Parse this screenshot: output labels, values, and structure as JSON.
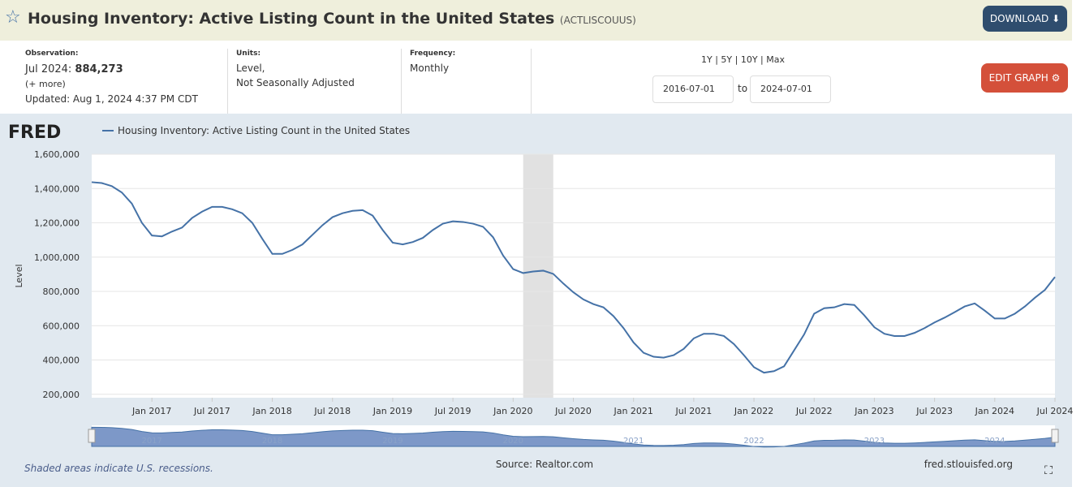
{
  "header": {
    "title": "Housing Inventory: Active Listing Count in the United States",
    "series_id": "(ACTLISCOUUS)",
    "download": "DOWNLOAD"
  },
  "meta": {
    "observation_label": "Observation:",
    "observation_date": "Jul 2024:",
    "observation_value": "884,273",
    "more": "(+ more)",
    "updated": "Updated: Aug 1, 2024 4:37 PM CDT",
    "units_label": "Units:",
    "units_1": "Level,",
    "units_2": "Not Seasonally Adjusted",
    "frequency_label": "Frequency:",
    "frequency": "Monthly",
    "ranges": "1Y | 5Y | 10Y | Max",
    "start_date": "2016-07-01",
    "to": "to",
    "end_date": "2024-07-01",
    "edit_graph": "EDIT GRAPH"
  },
  "chart_data": {
    "type": "line",
    "logo": "FRED",
    "ylabel": "Level",
    "x": [
      "2016-07",
      "2016-08",
      "2016-09",
      "2016-10",
      "2016-11",
      "2016-12",
      "2017-01",
      "2017-02",
      "2017-03",
      "2017-04",
      "2017-05",
      "2017-06",
      "2017-07",
      "2017-08",
      "2017-09",
      "2017-10",
      "2017-11",
      "2017-12",
      "2018-01",
      "2018-02",
      "2018-03",
      "2018-04",
      "2018-05",
      "2018-06",
      "2018-07",
      "2018-08",
      "2018-09",
      "2018-10",
      "2018-11",
      "2018-12",
      "2019-01",
      "2019-02",
      "2019-03",
      "2019-04",
      "2019-05",
      "2019-06",
      "2019-07",
      "2019-08",
      "2019-09",
      "2019-10",
      "2019-11",
      "2019-12",
      "2020-01",
      "2020-02",
      "2020-03",
      "2020-04",
      "2020-05",
      "2020-06",
      "2020-07",
      "2020-08",
      "2020-09",
      "2020-10",
      "2020-11",
      "2020-12",
      "2021-01",
      "2021-02",
      "2021-03",
      "2021-04",
      "2021-05",
      "2021-06",
      "2021-07",
      "2021-08",
      "2021-09",
      "2021-10",
      "2021-11",
      "2021-12",
      "2022-01",
      "2022-02",
      "2022-03",
      "2022-04",
      "2022-05",
      "2022-06",
      "2022-07",
      "2022-08",
      "2022-09",
      "2022-10",
      "2022-11",
      "2022-12",
      "2023-01",
      "2023-02",
      "2023-03",
      "2023-04",
      "2023-05",
      "2023-06",
      "2023-07",
      "2023-08",
      "2023-09",
      "2023-10",
      "2023-11",
      "2023-12",
      "2024-01",
      "2024-02",
      "2024-03",
      "2024-04",
      "2024-05",
      "2024-06",
      "2024-07"
    ],
    "series": [
      {
        "name": "Housing Inventory: Active Listing Count in the United States",
        "color": "#4572a7",
        "values": [
          1437000,
          1432000,
          1414000,
          1377000,
          1312000,
          1200000,
          1126000,
          1121000,
          1149000,
          1172000,
          1228000,
          1265000,
          1293000,
          1293000,
          1279000,
          1256000,
          1200000,
          1107000,
          1019000,
          1019000,
          1042000,
          1074000,
          1130000,
          1186000,
          1233000,
          1256000,
          1270000,
          1274000,
          1242000,
          1158000,
          1084000,
          1074000,
          1088000,
          1112000,
          1158000,
          1195000,
          1209000,
          1205000,
          1195000,
          1177000,
          1116000,
          1009000,
          930000,
          907000,
          916000,
          921000,
          902000,
          846000,
          795000,
          753000,
          726000,
          707000,
          656000,
          586000,
          502000,
          442000,
          419000,
          414000,
          428000,
          465000,
          526000,
          553000,
          553000,
          540000,
          493000,
          428000,
          358000,
          326000,
          335000,
          363000,
          456000,
          549000,
          670000,
          702000,
          707000,
          726000,
          721000,
          660000,
          591000,
          553000,
          540000,
          540000,
          558000,
          586000,
          619000,
          647000,
          679000,
          712000,
          730000,
          688000,
          642000,
          642000,
          670000,
          712000,
          763000,
          809000,
          884273
        ]
      }
    ],
    "xlim": [
      "2016-07",
      "2024-07"
    ],
    "xticks": [
      {
        "value": "2017-01",
        "label": "Jan 2017"
      },
      {
        "value": "2017-07",
        "label": "Jul 2017"
      },
      {
        "value": "2018-01",
        "label": "Jan 2018"
      },
      {
        "value": "2018-07",
        "label": "Jul 2018"
      },
      {
        "value": "2019-01",
        "label": "Jan 2019"
      },
      {
        "value": "2019-07",
        "label": "Jul 2019"
      },
      {
        "value": "2020-01",
        "label": "Jan 2020"
      },
      {
        "value": "2020-07",
        "label": "Jul 2020"
      },
      {
        "value": "2021-01",
        "label": "Jan 2021"
      },
      {
        "value": "2021-07",
        "label": "Jul 2021"
      },
      {
        "value": "2022-01",
        "label": "Jan 2022"
      },
      {
        "value": "2022-07",
        "label": "Jul 2022"
      },
      {
        "value": "2023-01",
        "label": "Jan 2023"
      },
      {
        "value": "2023-07",
        "label": "Jul 2023"
      },
      {
        "value": "2024-01",
        "label": "Jan 2024"
      },
      {
        "value": "2024-07",
        "label": "Jul 2024"
      }
    ],
    "ylim": [
      180000,
      1600000
    ],
    "yticks": [
      {
        "value": 200000,
        "label": "200,000"
      },
      {
        "value": 400000,
        "label": "400,000"
      },
      {
        "value": 600000,
        "label": "600,000"
      },
      {
        "value": 800000,
        "label": "800,000"
      },
      {
        "value": 1000000,
        "label": "1,000,000"
      },
      {
        "value": 1200000,
        "label": "1,200,000"
      },
      {
        "value": 1400000,
        "label": "1,400,000"
      },
      {
        "value": 1600000,
        "label": "1,600,000"
      }
    ],
    "grid": true,
    "recessions": [
      {
        "start": "2020-02",
        "end": "2020-04"
      }
    ],
    "navigator_labels": [
      {
        "value": "2017-01",
        "label": "2017"
      },
      {
        "value": "2018-01",
        "label": "2018"
      },
      {
        "value": "2019-01",
        "label": "2019"
      },
      {
        "value": "2020-01",
        "label": "2020"
      },
      {
        "value": "2021-01",
        "label": "2021"
      },
      {
        "value": "2022-01",
        "label": "2022"
      },
      {
        "value": "2023-01",
        "label": "2023"
      },
      {
        "value": "2024-01",
        "label": "2024"
      }
    ],
    "recession_note": "Shaded areas indicate U.S. recessions.",
    "source": "Source: Realtor.com",
    "site": "fred.stlouisfed.org"
  }
}
